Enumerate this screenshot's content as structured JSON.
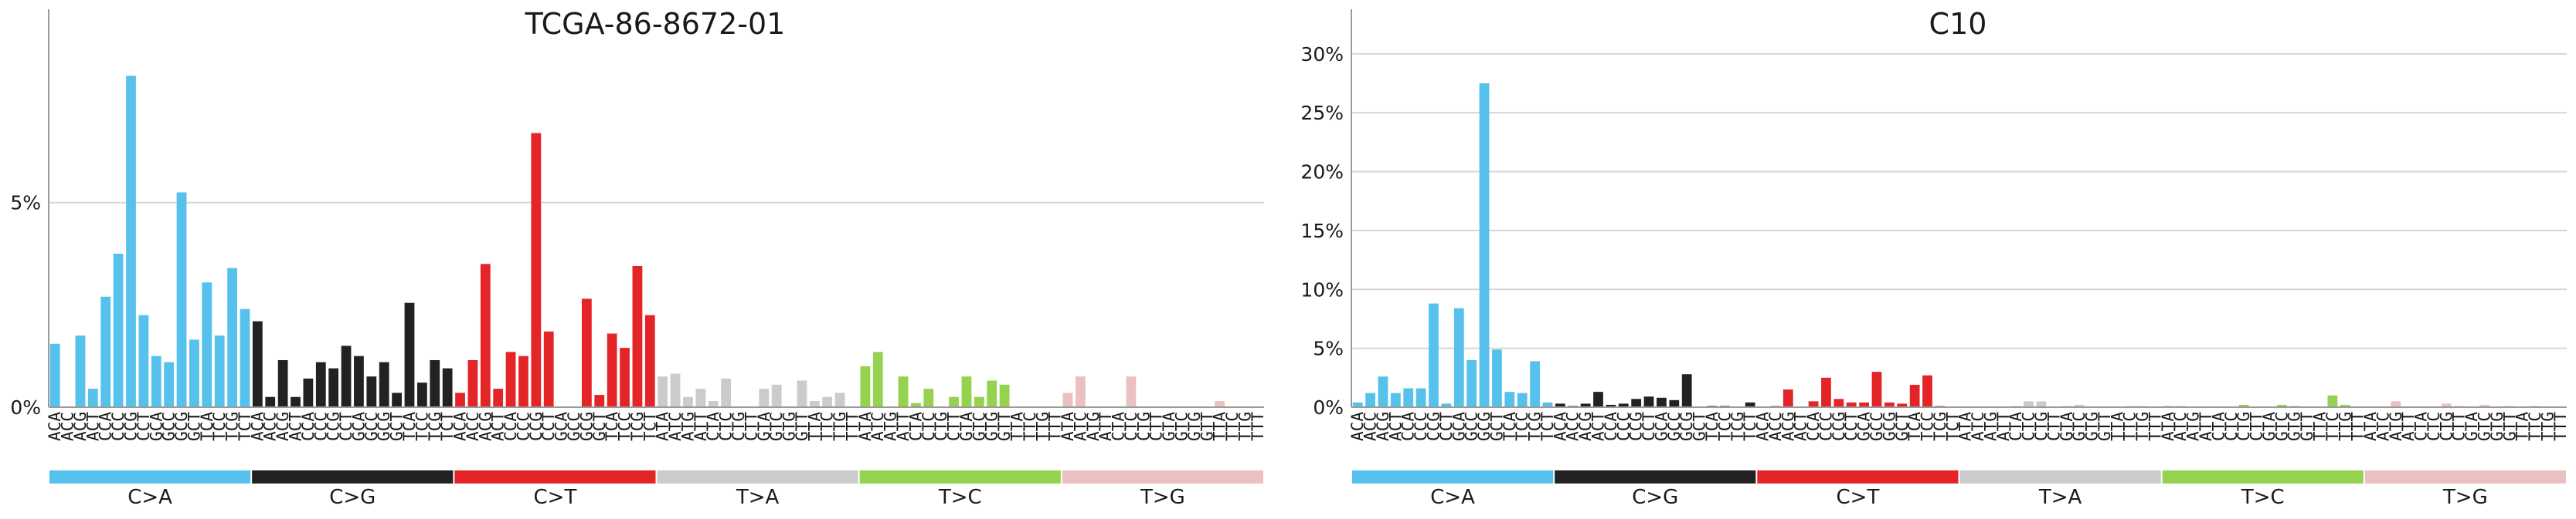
{
  "colors": {
    "C>A": "#56c1ec",
    "C>G": "#222222",
    "C>T": "#e42528",
    "T>A": "#cbcbcb",
    "T>C": "#95d24f",
    "T>G": "#ebc0c2"
  },
  "mutation_types": [
    "C>A",
    "C>G",
    "C>T",
    "T>A",
    "T>C",
    "T>G"
  ],
  "chart_data": [
    {
      "type": "bar",
      "title": "TCGA-86-8672-01",
      "ylim": [
        0,
        0.095
      ],
      "yticks": [
        0,
        0.05
      ],
      "yticklabels": [
        "0%",
        "5%"
      ],
      "grid": true,
      "categories": [
        "ACA",
        "ACC",
        "ACG",
        "ACT",
        "CCA",
        "CCC",
        "CCG",
        "CCT",
        "GCA",
        "GCC",
        "GCG",
        "GCT",
        "TCA",
        "TCC",
        "TCG",
        "TCT",
        "ACA",
        "ACC",
        "ACG",
        "ACT",
        "CCA",
        "CCC",
        "CCG",
        "CCT",
        "GCA",
        "GCC",
        "GCG",
        "GCT",
        "TCA",
        "TCC",
        "TCG",
        "TCT",
        "ACA",
        "ACC",
        "ACG",
        "ACT",
        "CCA",
        "CCC",
        "CCG",
        "CCT",
        "GCA",
        "GCC",
        "GCG",
        "GCT",
        "TCA",
        "TCC",
        "TCG",
        "TCT",
        "ATA",
        "ATC",
        "ATG",
        "ATT",
        "CTA",
        "CTC",
        "CTG",
        "CTT",
        "GTA",
        "GTC",
        "GTG",
        "GTT",
        "TTA",
        "TTC",
        "TTG",
        "TTT",
        "ATA",
        "ATC",
        "ATG",
        "ATT",
        "CTA",
        "CTC",
        "CTG",
        "CTT",
        "GTA",
        "GTC",
        "GTG",
        "GTT",
        "TTA",
        "TTC",
        "TTG",
        "TTT",
        "ATA",
        "ATC",
        "ATG",
        "ATT",
        "CTA",
        "CTC",
        "CTG",
        "CTT",
        "GTA",
        "GTC",
        "GTG",
        "GTT",
        "TTA",
        "TTC",
        "TTG",
        "TTT"
      ],
      "values": [
        0.0155,
        0,
        0.0175,
        0.0045,
        0.027,
        0.0375,
        0.081,
        0.0225,
        0.0125,
        0.011,
        0.0525,
        0.0165,
        0.0305,
        0.0175,
        0.034,
        0.024,
        0.021,
        0.0025,
        0.0115,
        0.0025,
        0.007,
        0.011,
        0.0095,
        0.015,
        0.0125,
        0.0075,
        0.011,
        0.0035,
        0.0255,
        0.006,
        0.0115,
        0.0095,
        0.0035,
        0.0115,
        0.035,
        0.0045,
        0.0135,
        0.0125,
        0.067,
        0.0185,
        0,
        0,
        0.0265,
        0.003,
        0.018,
        0.0145,
        0.0345,
        0.0225,
        0.0075,
        0.0082,
        0.0025,
        0.0045,
        0.0015,
        0.007,
        0,
        0,
        0.0045,
        0.0055,
        0,
        0.0065,
        0.0015,
        0.0025,
        0.0035,
        0,
        0.01,
        0.0135,
        0,
        0.0075,
        0.001,
        0.0045,
        0,
        0.0025,
        0.0075,
        0.0025,
        0.0065,
        0.0055,
        0,
        0,
        0,
        0,
        0.0035,
        0.0075,
        0,
        0,
        0,
        0.0075,
        0,
        0,
        0,
        0,
        0,
        0,
        0.0015,
        0,
        0,
        0
      ]
    },
    {
      "type": "bar",
      "title": "C10",
      "ylim": [
        0,
        0.33
      ],
      "yticks": [
        0,
        0.05,
        0.1,
        0.15,
        0.2,
        0.25,
        0.3
      ],
      "yticklabels": [
        "0%",
        "5%",
        "10%",
        "15%",
        "20%",
        "25%",
        "30%"
      ],
      "grid": true,
      "categories": [
        "ACA",
        "ACC",
        "ACG",
        "ACT",
        "CCA",
        "CCC",
        "CCG",
        "CCT",
        "GCA",
        "GCC",
        "GCG",
        "GCT",
        "TCA",
        "TCC",
        "TCG",
        "TCT",
        "ACA",
        "ACC",
        "ACG",
        "ACT",
        "CCA",
        "CCC",
        "CCG",
        "CCT",
        "GCA",
        "GCC",
        "GCG",
        "GCT",
        "TCA",
        "TCC",
        "TCG",
        "TCT",
        "ACA",
        "ACC",
        "ACG",
        "ACT",
        "CCA",
        "CCC",
        "CCG",
        "CCT",
        "GCA",
        "GCC",
        "GCG",
        "GCT",
        "TCA",
        "TCC",
        "TCG",
        "TCT",
        "ATA",
        "ATC",
        "ATG",
        "ATT",
        "CTA",
        "CTC",
        "CTG",
        "CTT",
        "GTA",
        "GTC",
        "GTG",
        "GTT",
        "TTA",
        "TTC",
        "TTG",
        "TTT",
        "ATA",
        "ATC",
        "ATG",
        "ATT",
        "CTA",
        "CTC",
        "CTG",
        "CTT",
        "GTA",
        "GTC",
        "GTG",
        "GTT",
        "TTA",
        "TTC",
        "TTG",
        "TTT",
        "ATA",
        "ATC",
        "ATG",
        "ATT",
        "CTA",
        "CTC",
        "CTG",
        "CTT",
        "GTA",
        "GTC",
        "GTG",
        "GTT",
        "TTA",
        "TTC",
        "TTG",
        "TTT"
      ],
      "values": [
        0.004,
        0.012,
        0.026,
        0.012,
        0.016,
        0.016,
        0.088,
        0.003,
        0.084,
        0.04,
        0.275,
        0.049,
        0.013,
        0.012,
        0.039,
        0.004,
        0.003,
        0.001,
        0.003,
        0.013,
        0.002,
        0.003,
        0.007,
        0.009,
        0.008,
        0.006,
        0.028,
        0,
        0.001,
        0.001,
        0,
        0.004,
        0,
        0.001,
        0.015,
        0,
        0.005,
        0.025,
        0.007,
        0.004,
        0.004,
        0.03,
        0.004,
        0.003,
        0.019,
        0.027,
        0.001,
        0,
        0,
        0,
        0,
        0,
        0.001,
        0.005,
        0.005,
        0,
        0.001,
        0.002,
        0,
        0,
        0,
        0.001,
        0.001,
        0,
        0.001,
        0.001,
        0,
        0,
        0,
        0,
        0.002,
        0,
        0,
        0.002,
        0.001,
        0,
        0,
        0.01,
        0.002,
        0,
        0,
        0,
        0.005,
        0,
        0,
        0,
        0.003,
        0.001,
        0,
        0.002,
        0,
        0.001,
        0,
        0.001,
        0,
        0
      ]
    }
  ]
}
